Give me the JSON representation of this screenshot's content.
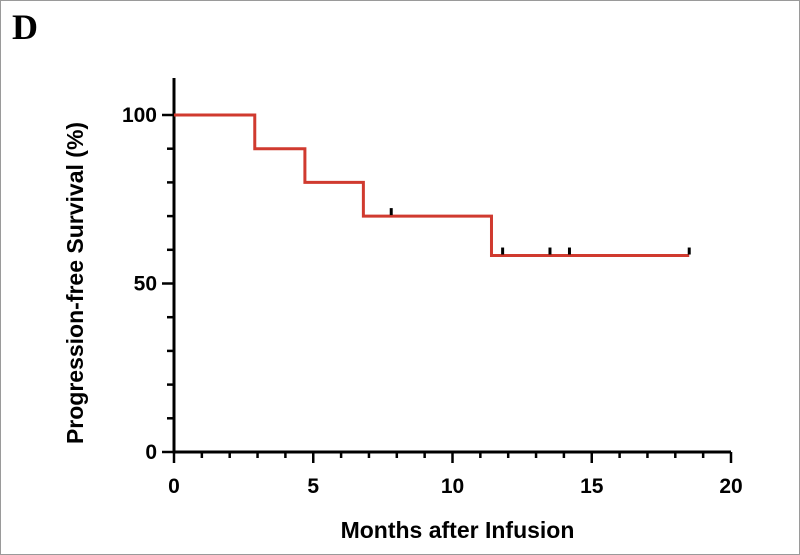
{
  "panel_label": "D",
  "chart_data": {
    "type": "line",
    "style": "step",
    "title": "",
    "xlabel": "Months after Infusion",
    "ylabel": "Progression-free Survival (%)",
    "xlim": [
      0,
      20
    ],
    "ylim": [
      0,
      100
    ],
    "x_ticks": [
      0,
      5,
      10,
      15,
      20
    ],
    "y_ticks": [
      0,
      50,
      100
    ],
    "grid": false,
    "legend": "none",
    "series": [
      {
        "color": "#d03a2f",
        "steps": [
          {
            "x": 0,
            "y": 100
          },
          {
            "x": 2.9,
            "y": 90
          },
          {
            "x": 4.7,
            "y": 80
          },
          {
            "x": 6.8,
            "y": 70
          },
          {
            "x": 11.4,
            "y": 58.3
          },
          {
            "x": 18.5,
            "y": 58.3
          }
        ],
        "censored": [
          {
            "x": 7.8,
            "y": 70
          },
          {
            "x": 11.8,
            "y": 58.3
          },
          {
            "x": 13.5,
            "y": 58.3
          },
          {
            "x": 14.2,
            "y": 58.3
          },
          {
            "x": 18.5,
            "y": 58.3
          }
        ]
      }
    ]
  }
}
